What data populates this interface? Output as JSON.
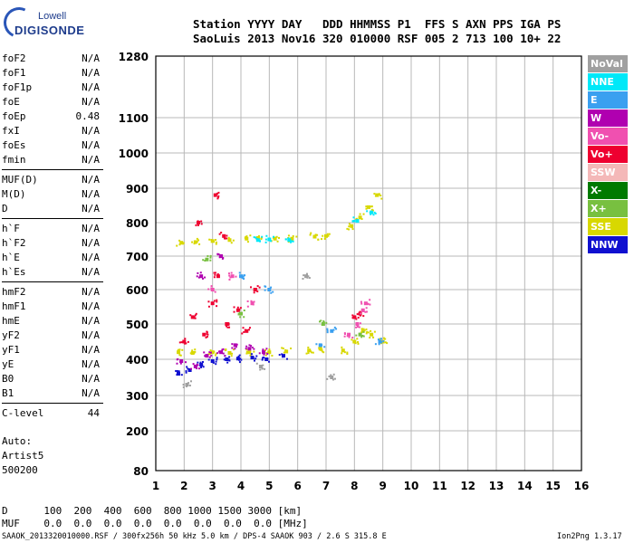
{
  "logo": {
    "line1": "Lowell",
    "line2": "DIGISONDE"
  },
  "header": {
    "labels": "Station YYYY DAY   DDD HHMMSS P1  FFS S AXN PPS IGA PS",
    "values": "SaoLuis 2013 Nov16 320 010000 RSF 005 2 713 100 10+ 22"
  },
  "params": [
    [
      {
        "name": "foF2",
        "value": "N/A"
      },
      {
        "name": "foF1",
        "value": "N/A"
      },
      {
        "name": "foF1p",
        "value": "N/A"
      },
      {
        "name": "foE",
        "value": "N/A"
      },
      {
        "name": "foEp",
        "value": "0.48"
      },
      {
        "name": "fxI",
        "value": "N/A"
      },
      {
        "name": "foEs",
        "value": "N/A"
      },
      {
        "name": "fmin",
        "value": "N/A"
      }
    ],
    [
      {
        "name": "MUF(D)",
        "value": "N/A"
      },
      {
        "name": "M(D)",
        "value": "N/A"
      },
      {
        "name": "D",
        "value": "N/A"
      }
    ],
    [
      {
        "name": "h`F",
        "value": "N/A"
      },
      {
        "name": "h`F2",
        "value": "N/A"
      },
      {
        "name": "h`E",
        "value": "N/A"
      },
      {
        "name": "h`Es",
        "value": "N/A"
      }
    ],
    [
      {
        "name": "hmF2",
        "value": "N/A"
      },
      {
        "name": "hmF1",
        "value": "N/A"
      },
      {
        "name": "hmE",
        "value": "N/A"
      },
      {
        "name": "yF2",
        "value": "N/A"
      },
      {
        "name": "yF1",
        "value": "N/A"
      },
      {
        "name": "yE",
        "value": "N/A"
      },
      {
        "name": "B0",
        "value": "N/A"
      },
      {
        "name": "B1",
        "value": "N/A"
      }
    ],
    [
      {
        "name": "C-level",
        "value": "44"
      }
    ]
  ],
  "autoscale": {
    "line1": "Auto:",
    "line2": "Artist5",
    "line3": "500200"
  },
  "legend": [
    {
      "label": "NoVal",
      "color": "#a0a0a0"
    },
    {
      "label": "NNE",
      "color": "#00e8f8"
    },
    {
      "label": "E",
      "color": "#3aa0f0"
    },
    {
      "label": "W",
      "color": "#b000b0"
    },
    {
      "label": "Vo-",
      "color": "#f050b0"
    },
    {
      "label": "Vo+",
      "color": "#ee0030"
    },
    {
      "label": "SSW",
      "color": "#f4b8b8"
    },
    {
      "label": "X-",
      "color": "#007a00"
    },
    {
      "label": "X+",
      "color": "#78c040"
    },
    {
      "label": "SSE",
      "color": "#d8d800"
    },
    {
      "label": "NNW",
      "color": "#1010d0"
    }
  ],
  "footer": {
    "d_row": "D      100  200  400  600  800 1000 1500 3000 [km]",
    "muf_row": "MUF    0.0  0.0  0.0  0.0  0.0  0.0  0.0  0.0 [MHz]",
    "file_info": "SAAOK_2013320010000.RSF / 300fx256h 50 kHz 5.0 km / DPS-4 SAAOK 903 / 2.6 S 315.8 E",
    "version": "Ion2Png 1.3.17"
  },
  "chart_data": {
    "type": "scatter",
    "title": "",
    "xlabel": "",
    "ylabel": "",
    "xlim": [
      1,
      16
    ],
    "ylim": [
      80,
      1280
    ],
    "x_ticks": [
      "1",
      "2",
      "3",
      "4",
      "5",
      "6",
      "7",
      "8",
      "9",
      "10",
      "11",
      "12",
      "13",
      "14",
      "15",
      "16"
    ],
    "y_ticks": [
      "80",
      "200",
      "300",
      "400",
      "500",
      "600",
      "700",
      "800",
      "900",
      "1000",
      "1100",
      "1280"
    ],
    "y_tick_values": [
      80,
      200,
      300,
      400,
      500,
      600,
      700,
      800,
      900,
      1000,
      1100,
      1280
    ],
    "grid": true,
    "y_scale": "nonlinear (ionogram virtual height)",
    "x_units": "MHz",
    "y_units": "km",
    "series": [
      {
        "label_ref": "SSE",
        "points": [
          [
            1.9,
            740
          ],
          [
            2.4,
            742
          ],
          [
            3.0,
            745
          ],
          [
            3.6,
            748
          ],
          [
            4.2,
            752
          ],
          [
            4.6,
            754
          ],
          [
            5.2,
            752
          ],
          [
            5.8,
            752
          ],
          [
            6.6,
            758
          ],
          [
            7.0,
            760
          ],
          [
            7.9,
            790
          ],
          [
            8.2,
            815
          ],
          [
            8.5,
            845
          ],
          [
            8.8,
            880
          ],
          [
            1.8,
            420
          ],
          [
            2.3,
            418
          ],
          [
            3.0,
            420
          ],
          [
            3.6,
            418
          ],
          [
            4.3,
            420
          ],
          [
            5.0,
            420
          ],
          [
            5.6,
            422
          ],
          [
            6.4,
            425
          ],
          [
            6.8,
            430
          ],
          [
            7.6,
            425
          ],
          [
            8.0,
            450
          ],
          [
            8.3,
            480
          ],
          [
            8.6,
            470
          ],
          [
            9.0,
            450
          ]
        ]
      },
      {
        "label_ref": "Vo+",
        "points": [
          [
            2.0,
            450
          ],
          [
            2.3,
            520
          ],
          [
            2.7,
            470
          ],
          [
            3.0,
            560
          ],
          [
            3.2,
            640
          ],
          [
            3.5,
            500
          ],
          [
            3.9,
            540
          ],
          [
            4.2,
            480
          ],
          [
            4.5,
            600
          ],
          [
            2.5,
            800
          ],
          [
            3.1,
            880
          ],
          [
            3.4,
            760
          ],
          [
            8.2,
            530
          ],
          [
            8.0,
            520
          ]
        ]
      },
      {
        "label_ref": "NNW",
        "points": [
          [
            1.8,
            360
          ],
          [
            2.2,
            370
          ],
          [
            2.6,
            385
          ],
          [
            3.0,
            395
          ],
          [
            3.5,
            400
          ],
          [
            3.9,
            402
          ],
          [
            4.4,
            405
          ],
          [
            4.9,
            400
          ],
          [
            5.5,
            410
          ]
        ]
      },
      {
        "label_ref": "W",
        "points": [
          [
            1.9,
            395
          ],
          [
            2.4,
            380
          ],
          [
            2.8,
            410
          ],
          [
            3.3,
            420
          ],
          [
            3.8,
            440
          ],
          [
            4.3,
            430
          ],
          [
            4.8,
            420
          ],
          [
            2.6,
            640
          ],
          [
            3.3,
            700
          ]
        ]
      },
      {
        "label_ref": "Vo-",
        "points": [
          [
            8.1,
            500
          ],
          [
            8.3,
            540
          ],
          [
            8.4,
            560
          ],
          [
            7.8,
            470
          ],
          [
            3.0,
            600
          ],
          [
            3.7,
            640
          ],
          [
            4.4,
            560
          ]
        ]
      },
      {
        "label_ref": "NNE",
        "points": [
          [
            4.6,
            748
          ],
          [
            5.0,
            750
          ],
          [
            5.7,
            748
          ],
          [
            8.6,
            830
          ],
          [
            8.1,
            805
          ]
        ]
      },
      {
        "label_ref": "E",
        "points": [
          [
            4.0,
            640
          ],
          [
            5.0,
            600
          ],
          [
            6.8,
            440
          ],
          [
            7.2,
            480
          ],
          [
            8.9,
            450
          ]
        ]
      },
      {
        "label_ref": "X+",
        "points": [
          [
            2.8,
            690
          ],
          [
            4.0,
            530
          ],
          [
            6.9,
            500
          ],
          [
            8.2,
            470
          ]
        ]
      },
      {
        "label_ref": "NoVal",
        "points": [
          [
            2.1,
            330
          ],
          [
            4.7,
            380
          ],
          [
            6.3,
            640
          ],
          [
            7.2,
            350
          ]
        ]
      }
    ]
  }
}
